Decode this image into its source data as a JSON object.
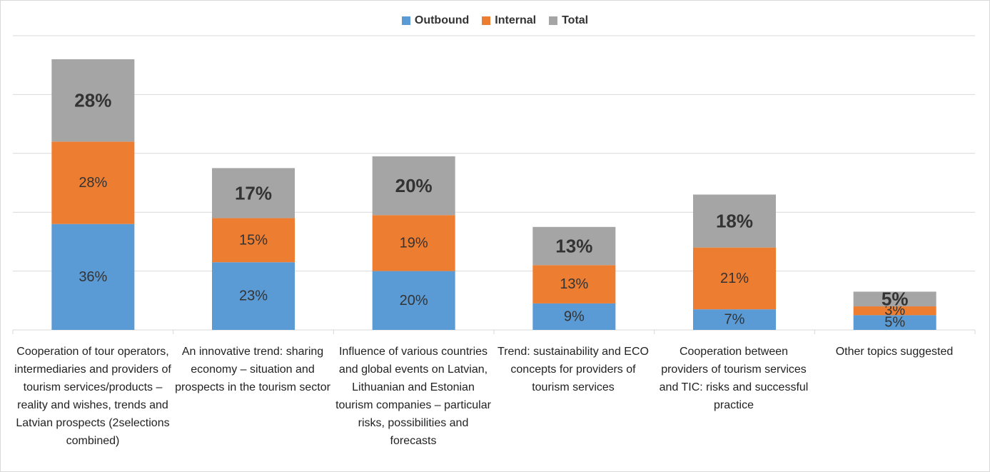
{
  "chart_data": {
    "type": "bar",
    "stacked": true,
    "categories": [
      "Cooperation of tour operators, intermediaries and providers of tourism services/products – reality and wishes, trends and Latvian prospects (2selections combined)",
      "An innovative trend: sharing economy – situation and prospects in the tourism sector",
      "Influence of various countries and global events on Latvian, Lithuanian and Estonian tourism companies – particular risks, possibilities and forecasts",
      "Trend: sustainability and ECO concepts for providers of tourism services",
      "Cooperation between providers of tourism services and TIC: risks and successful practice",
      "Other topics suggested"
    ],
    "series": [
      {
        "name": "Outbound",
        "color": "#5b9bd5",
        "values": [
          36,
          23,
          20,
          9,
          7,
          5
        ],
        "labels": [
          "36%",
          "23%",
          "20%",
          "9%",
          "7%",
          "5%"
        ]
      },
      {
        "name": "Internal",
        "color": "#ed7d31",
        "values": [
          28,
          15,
          19,
          13,
          21,
          3
        ],
        "labels": [
          "28%",
          "15%",
          "19%",
          "13%",
          "21%",
          "3%"
        ]
      },
      {
        "name": "Total",
        "color": "#a5a5a5",
        "values": [
          28,
          17,
          20,
          13,
          18,
          5
        ],
        "labels": [
          "28%",
          "17%",
          "20%",
          "13%",
          "18%",
          "5%"
        ]
      }
    ],
    "ylim": [
      0,
      100
    ],
    "grid": true,
    "legend": "top-center"
  }
}
